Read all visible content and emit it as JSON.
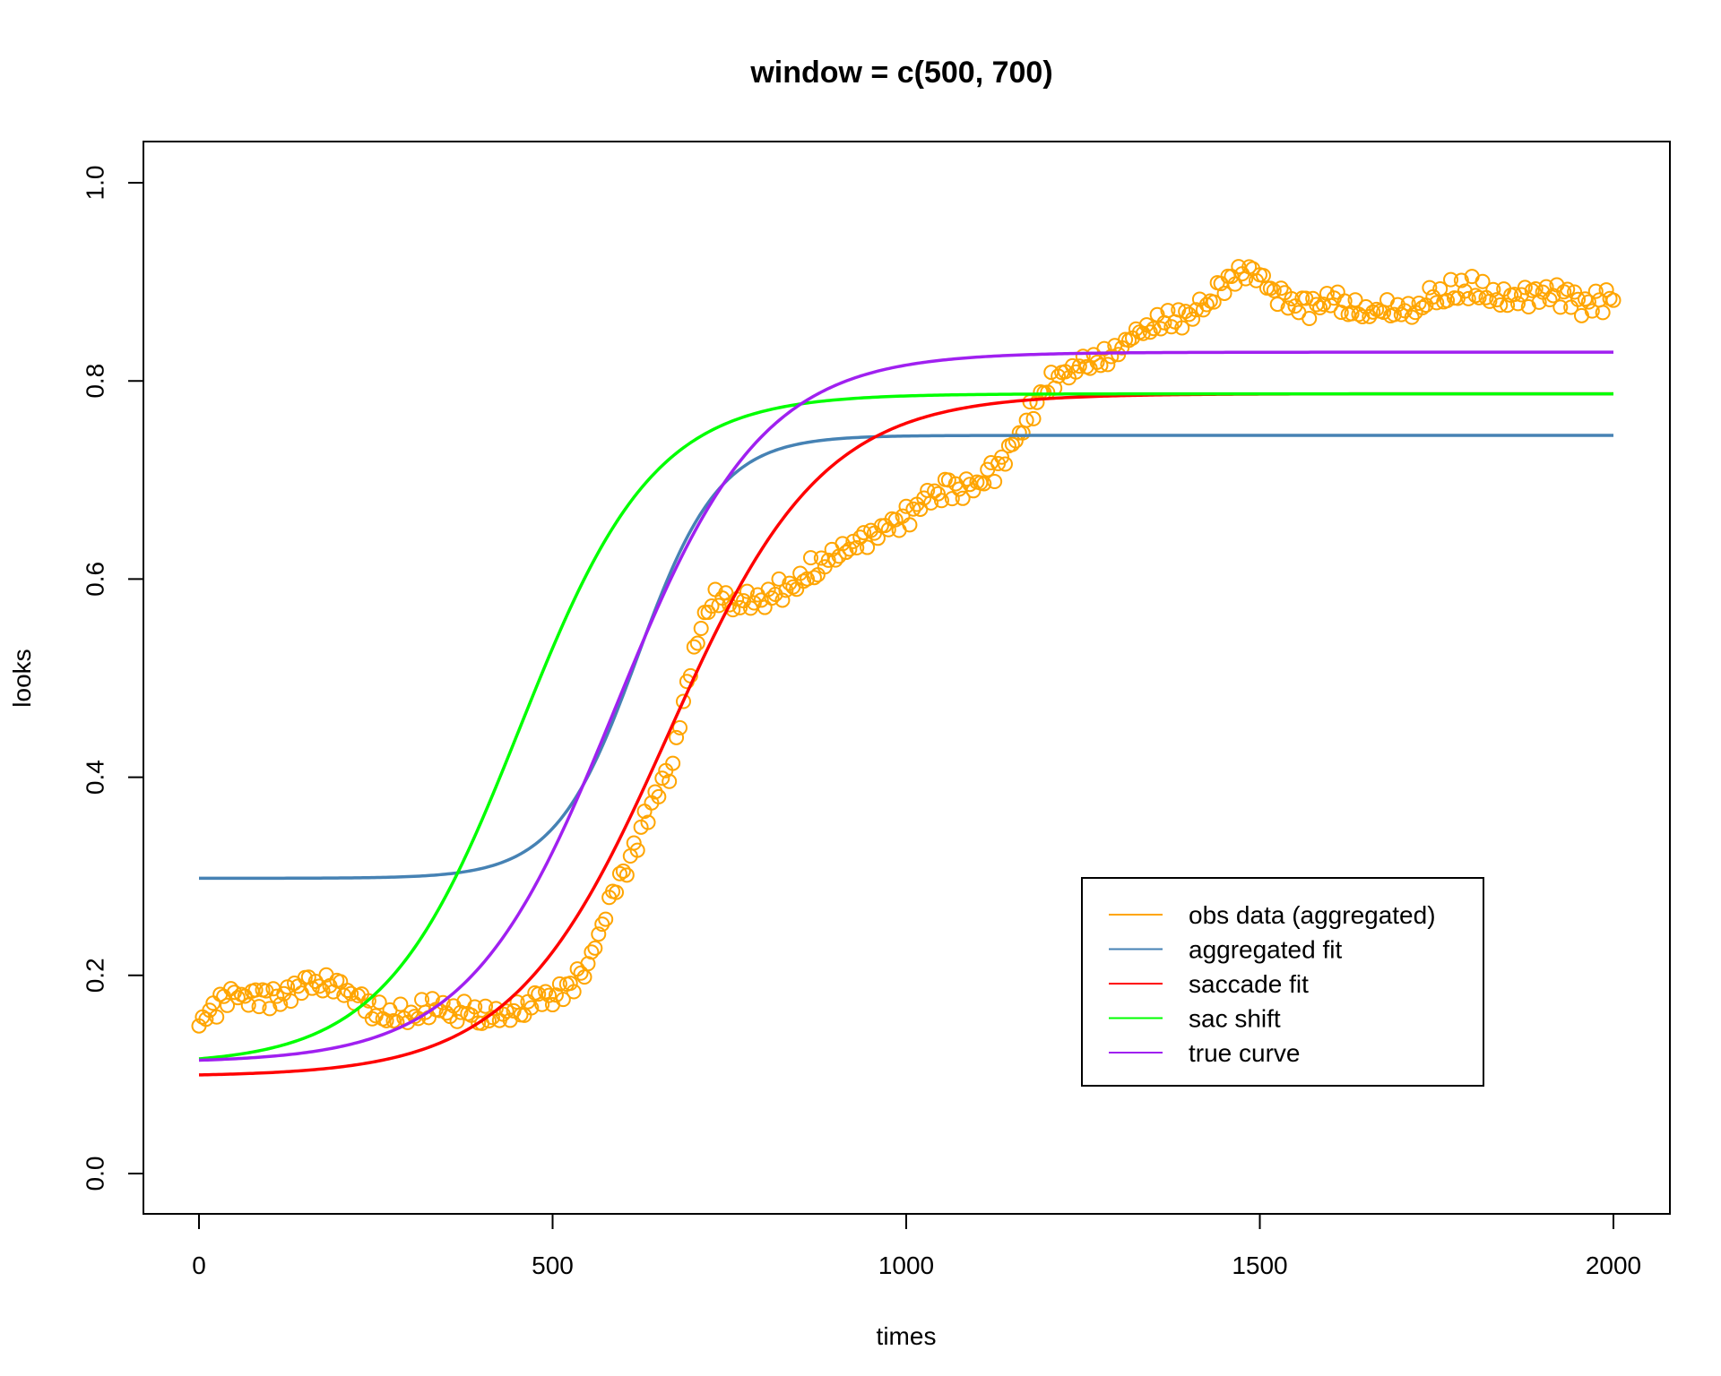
{
  "chart_data": {
    "type": "line",
    "title": "window = c(500, 700)",
    "xlabel": "times",
    "ylabel": "looks",
    "xlim": [
      0,
      2000
    ],
    "ylim": [
      0,
      1
    ],
    "x_ticks": [
      "0",
      "500",
      "1000",
      "1500",
      "2000"
    ],
    "y_ticks": [
      "0.0",
      "0.2",
      "0.4",
      "0.6",
      "0.8",
      "1.0"
    ],
    "grid": false,
    "legend_position": "bottom-right",
    "legend": [
      {
        "label": "obs data (aggregated)",
        "color": "#FFA500"
      },
      {
        "label": "aggregated fit",
        "color": "#4682B4"
      },
      {
        "label": "saccade fit",
        "color": "#FF0000"
      },
      {
        "label": "sac shift",
        "color": "#00FF00"
      },
      {
        "label": "true curve",
        "color": "#A020F0"
      }
    ],
    "observed": {
      "name": "obs data (aggregated)",
      "color": "#FFA500",
      "marker": "open-circle",
      "points": [
        [
          0,
          0.155
        ],
        [
          50,
          0.182
        ],
        [
          100,
          0.185
        ],
        [
          150,
          0.192
        ],
        [
          200,
          0.19
        ],
        [
          250,
          0.172
        ],
        [
          300,
          0.165
        ],
        [
          350,
          0.17
        ],
        [
          400,
          0.172
        ],
        [
          450,
          0.168
        ],
        [
          500,
          0.18
        ],
        [
          550,
          0.215
        ],
        [
          580,
          0.28
        ],
        [
          600,
          0.3
        ],
        [
          630,
          0.36
        ],
        [
          650,
          0.39
        ],
        [
          670,
          0.42
        ],
        [
          690,
          0.5
        ],
        [
          710,
          0.56
        ],
        [
          730,
          0.59
        ],
        [
          760,
          0.58
        ],
        [
          800,
          0.59
        ],
        [
          850,
          0.61
        ],
        [
          900,
          0.63
        ],
        [
          950,
          0.65
        ],
        [
          1000,
          0.67
        ],
        [
          1050,
          0.69
        ],
        [
          1100,
          0.7
        ],
        [
          1150,
          0.74
        ],
        [
          1200,
          0.8
        ],
        [
          1250,
          0.83
        ],
        [
          1300,
          0.84
        ],
        [
          1350,
          0.862
        ],
        [
          1400,
          0.872
        ],
        [
          1450,
          0.9
        ],
        [
          1480,
          0.91
        ],
        [
          1500,
          0.905
        ],
        [
          1550,
          0.885
        ],
        [
          1600,
          0.882
        ],
        [
          1650,
          0.878
        ],
        [
          1700,
          0.88
        ],
        [
          1750,
          0.89
        ],
        [
          1800,
          0.9
        ],
        [
          1850,
          0.895
        ],
        [
          1900,
          0.89
        ],
        [
          1950,
          0.883
        ],
        [
          2000,
          0.893
        ]
      ]
    },
    "series": [
      {
        "name": "aggregated fit",
        "color": "#4682B4",
        "model": "logistic",
        "base": 0.298,
        "peak": 0.745,
        "crossover": 620,
        "slope": 0.0172
      },
      {
        "name": "saccade fit",
        "color": "#FF0000",
        "model": "logistic",
        "base": 0.098,
        "peak": 0.787,
        "crossover": 663,
        "slope": 0.0092
      },
      {
        "name": "sac shift",
        "color": "#00FF00",
        "model": "logistic",
        "base": 0.11,
        "peak": 0.787,
        "crossover": 453,
        "slope": 0.0105
      },
      {
        "name": "true curve",
        "color": "#A020F0",
        "model": "logistic",
        "base": 0.112,
        "peak": 0.829,
        "crossover": 589,
        "slope": 0.0097
      }
    ]
  }
}
